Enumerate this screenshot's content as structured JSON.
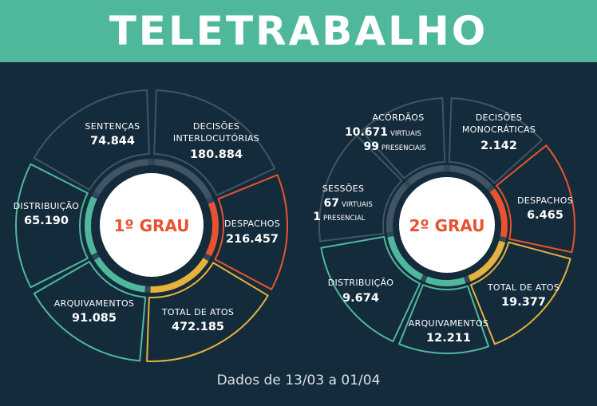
{
  "title": "TELETRABALHO",
  "footer": "Dados de 13/03 a 01/04",
  "colors": {
    "dark": "#142b3b",
    "teal": "#4fb89c",
    "orange": "#e8532f",
    "yellow": "#e6b13c",
    "outline": "#415465"
  },
  "primeiro": {
    "center": "1º GRAU",
    "sentencas": {
      "label": "SENTENÇAS",
      "value": "74.844"
    },
    "decisoes_l1": "DECISÕES",
    "decisoes_l2": "INTERLOCUTÓRIAS",
    "decisoes_value": "180.884",
    "despachos": {
      "label": "DESPACHOS",
      "value": "216.457"
    },
    "total": {
      "label": "TOTAL DE ATOS",
      "value": "472.185"
    },
    "arquivamentos": {
      "label": "ARQUIVAMENTOS",
      "value": "91.085"
    },
    "distribuicao": {
      "label": "DISTRIBUIÇÃO",
      "value": "65.190"
    }
  },
  "segundo": {
    "center": "2º GRAU",
    "acordaos": {
      "label": "ACÓRDÃOS",
      "virtuais_num": "10.671",
      "virtuais_word": "VIRTUAIS",
      "presenciais_num": "99",
      "presenciais_word": "PRESENCIAIS"
    },
    "decisoes_l1": "DECISÕES",
    "decisoes_l2": "MONOCRÁTICAS",
    "decisoes_value": "2.142",
    "despachos": {
      "label": "DESPACHOS",
      "value": "6.465"
    },
    "total": {
      "label": "TOTAL DE ATOS",
      "value": "19.377"
    },
    "arquivamentos": {
      "label": "ARQUIVAMENTOS",
      "value": "12.211"
    },
    "distribuicao": {
      "label": "DISTRIBUIÇÃO",
      "value": "9.674"
    },
    "sessoes": {
      "label": "SESSÕES",
      "virtuais_num": "67",
      "virtuais_word": "VIRTUAIS",
      "presencial_num": "1",
      "presencial_word": "PRESENCIAL"
    }
  }
}
